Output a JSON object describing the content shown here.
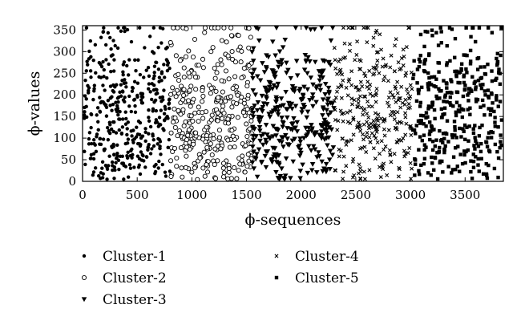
{
  "chart_data": {
    "type": "scatter",
    "xlabel": "ϕ-sequences",
    "ylabel": "ϕ-values",
    "xlim": [
      0,
      3850
    ],
    "ylim": [
      0,
      360
    ],
    "x_ticks": [
      0,
      500,
      1000,
      1500,
      2000,
      2500,
      3000,
      3500
    ],
    "y_ticks": [
      0,
      50,
      100,
      150,
      200,
      250,
      300,
      350
    ],
    "grid": false,
    "legend_position": "bottom",
    "series": [
      {
        "name": "Cluster-1",
        "marker": "dot",
        "x_range": [
          0,
          800
        ]
      },
      {
        "name": "Cluster-2",
        "marker": "open-circle",
        "x_range": [
          800,
          1550
        ]
      },
      {
        "name": "Cluster-3",
        "marker": "down-triangle",
        "x_range": [
          1550,
          2300
        ]
      },
      {
        "name": "Cluster-4",
        "marker": "cross",
        "x_range": [
          2300,
          3020
        ]
      },
      {
        "name": "Cluster-5",
        "marker": "square",
        "x_range": [
          3020,
          3850
        ]
      }
    ]
  }
}
